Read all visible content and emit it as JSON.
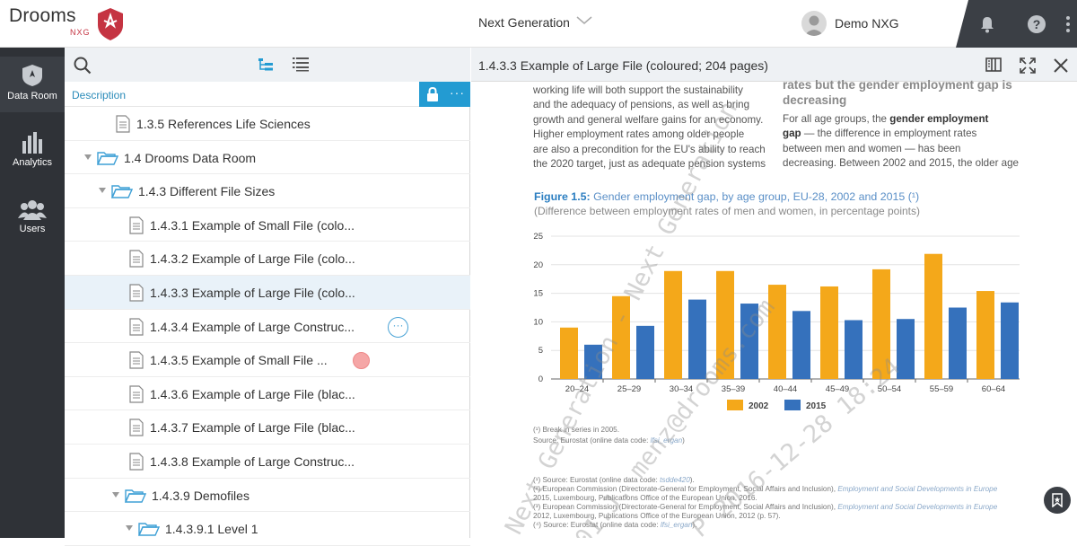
{
  "app": {
    "name": "Drooms",
    "sub": "NXG",
    "project": "Next Generation",
    "user": "Demo NXG"
  },
  "nav": [
    {
      "label": "Data Room",
      "icon": "data-room-icon"
    },
    {
      "label": "Analytics",
      "icon": "analytics-icon"
    },
    {
      "label": "Users",
      "icon": "users-icon"
    }
  ],
  "panel": {
    "description_label": "Description"
  },
  "tree": [
    {
      "label": "1.3.5 References Life Sciences",
      "type": "file"
    },
    {
      "label": "1.4 Drooms Data Room",
      "type": "folder"
    },
    {
      "label": "1.4.3 Different File Sizes",
      "type": "folder"
    },
    {
      "label": "1.4.3.1 Example of Small File (colo...",
      "type": "file"
    },
    {
      "label": "1.4.3.2 Example of Large File (colo...",
      "type": "file"
    },
    {
      "label": "1.4.3.3 Example of Large File (colo...",
      "type": "file",
      "selected": true
    },
    {
      "label": "1.4.3.4 Example of Large Construc...",
      "type": "file"
    },
    {
      "label": "1.4.3.5 Example of Small File ...",
      "type": "file"
    },
    {
      "label": "1.4.3.6 Example of Large File (blac...",
      "type": "file"
    },
    {
      "label": "1.4.3.7 Example of Large File (blac...",
      "type": "file"
    },
    {
      "label": "1.4.3.8 Example of Large Construc...",
      "type": "file"
    },
    {
      "label": "1.4.3.9 Demofiles",
      "type": "folder"
    },
    {
      "label": "1.4.3.9.1 Level 1",
      "type": "folder"
    }
  ],
  "viewer": {
    "title": "1.4.3.3 Example of Large File (coloured; 204 pages)"
  },
  "document": {
    "left_col": [
      "working life will both support the sustainability",
      "and the adequacy of pensions, as well as bring",
      "growth and general welfare gains for an economy.",
      "Higher employment rates among older people",
      "are also a precondition for the EU's ability to reach",
      "the 2020 target, just as adequate pension systems"
    ],
    "right_heading": [
      "rates but the gender employment gap is",
      "decreasing"
    ],
    "right_col": {
      "line1_pre": "For all age groups, the ",
      "line1_bold": "gender employment",
      "line2_bold": "gap",
      "line2_post": " — the difference in employment rates",
      "line3": "between men and women — has been",
      "line4": "decreasing. Between 2002 and 2015, the older age"
    },
    "figure_label": "Figure 1.5:",
    "figure_title": " Gender employment gap, by age group, EU-28, 2002 and 2015 (¹)",
    "figure_subtitle": "(Difference between employment rates of men and women, in percentage points)",
    "note1": "(¹) Break in series in 2005.",
    "source1_pre": "Source: Eurostat (online data code: ",
    "source1_code": "lfsi_ergan",
    "source1_post": ")",
    "footnotes": [
      {
        "pre": "(¹) Source: Eurostat (online data code: ",
        "link": "tsdde420",
        "post": ")."
      },
      {
        "pre": "(²) European Commission (Directorate-General for Employment, Social Affairs and Inclusion), ",
        "link": "Employment and Social Developments in Europe",
        "post": ""
      },
      {
        "pre": "2015",
        "link": "",
        "post": ", Luxembourg, Publications Office of the European Union, 2016."
      },
      {
        "pre": "(³) European Commission (Directorate-General for Employment, Social Affairs and Inclusion), ",
        "link": "Employment and Social Developments in Europe",
        "post": ""
      },
      {
        "pre": "2012",
        "link": "",
        "post": ", Luxembourg, Publications Office of the European Union, 2012 (p. 57)."
      },
      {
        "pre": "(⁴) Source: Eurostat (online data code: ",
        "link": "lfsi_ergan",
        "post": ")."
      }
    ],
    "watermark": [
      "Next Generation - Next Generation",
      "01.J. menz@drooms.com",
      "P 2016-12-28 18:24"
    ]
  },
  "chart_data": {
    "type": "bar",
    "categories": [
      "20–24",
      "25–29",
      "30–34",
      "35–39",
      "40–44",
      "45–49",
      "50–54",
      "55–59",
      "60–64"
    ],
    "series": [
      {
        "name": "2002",
        "color": "#f4a81a",
        "values": [
          9.0,
          14.5,
          18.9,
          18.9,
          16.5,
          16.2,
          19.2,
          21.9,
          15.4
        ]
      },
      {
        "name": "2015",
        "color": "#3571bc",
        "values": [
          6.0,
          9.3,
          13.9,
          13.2,
          11.9,
          10.3,
          10.5,
          12.5,
          13.4
        ]
      }
    ],
    "yticks": [
      0,
      5,
      10,
      15,
      20,
      25
    ],
    "ylim": [
      0,
      25
    ],
    "legend": "bottom"
  }
}
